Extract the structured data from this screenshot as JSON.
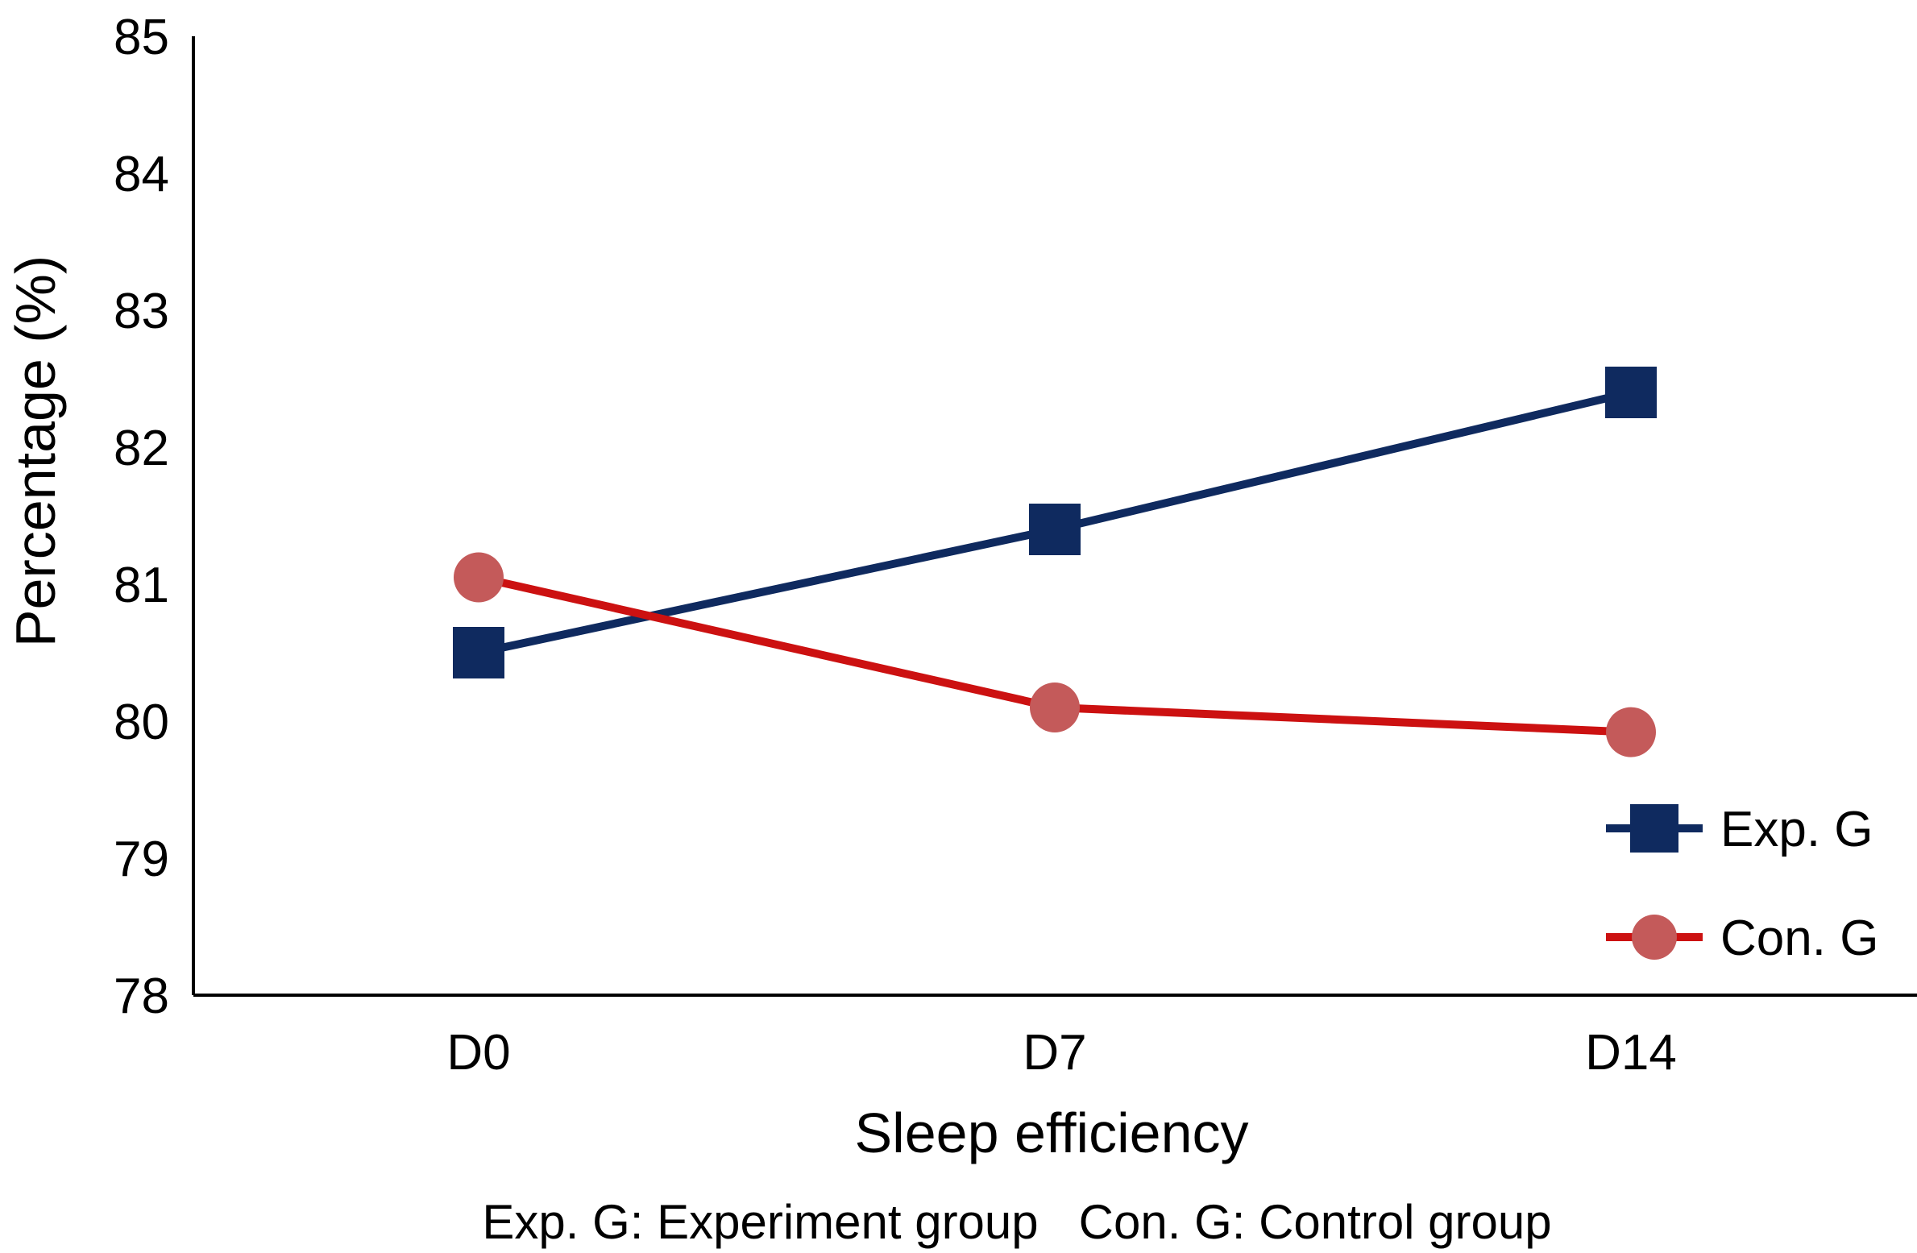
{
  "chart_data": {
    "type": "line",
    "categories": [
      "D0",
      "D7",
      "D14"
    ],
    "series": [
      {
        "name": "Exp. G",
        "values": [
          80.5,
          81.4,
          82.4
        ],
        "color": "#0f2a5f",
        "marker": "square"
      },
      {
        "name": "Con. G",
        "values": [
          81.05,
          80.1,
          79.92
        ],
        "color": "#cc1111",
        "marker_color": "#c45a5a",
        "marker": "circle"
      }
    ],
    "xlabel": "Sleep efficiency",
    "ylabel": "Percentage (%)",
    "ylim": [
      78,
      85
    ],
    "yticks": [
      "78",
      "79",
      "80",
      "81",
      "82",
      "83",
      "84",
      "85"
    ],
    "grid": false,
    "legend_position": "bottom-right",
    "footnote": "Exp. G: Experiment group   Con. G: Control group"
  }
}
